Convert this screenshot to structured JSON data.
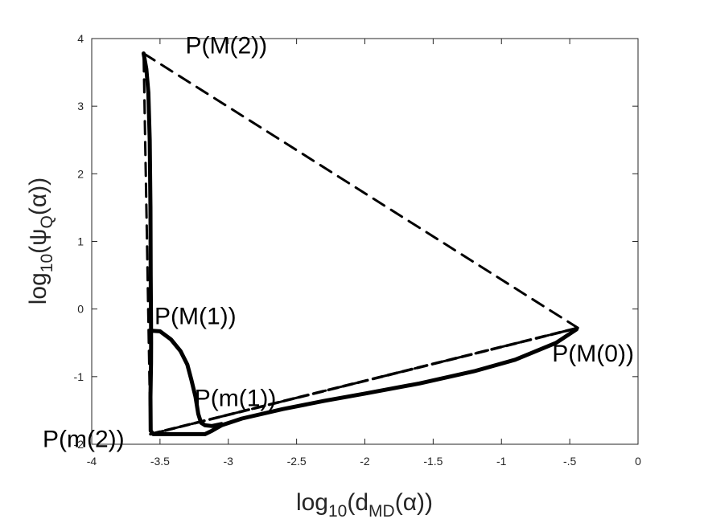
{
  "chart_data": {
    "type": "line",
    "xlabel": {
      "pre": "log",
      "sub1": "10",
      "mid": "(d",
      "sub2": "MD",
      "post": "(α))"
    },
    "ylabel": {
      "pre": "log",
      "sub1": "10",
      "mid": "(ψ",
      "sub2": "Q",
      "post": "(α))"
    },
    "xlim": [
      -4,
      0
    ],
    "ylim": [
      -2,
      4
    ],
    "xticks": [
      -4,
      -3.5,
      -3,
      -2.5,
      -2,
      -1.5,
      -1,
      -0.5,
      0
    ],
    "yticks": [
      -2,
      -1,
      0,
      1,
      2,
      3,
      4
    ],
    "grid": false,
    "colors": {
      "curve": "#000000",
      "axes": "#262626"
    },
    "series": [
      {
        "style": "solid",
        "x": [
          -3.62,
          -3.6,
          -3.585,
          -3.575,
          -3.57,
          -3.568,
          -3.566,
          -3.565,
          -3.566,
          -3.57,
          -3.568,
          -3.55,
          -3.5,
          -3.42,
          -3.35,
          -3.3,
          -3.27,
          -3.24,
          -3.22,
          -3.2,
          -3.17,
          -3.12,
          -3.05,
          -2.9,
          -2.6,
          -2.3,
          -2.0,
          -1.6,
          -1.2,
          -0.9,
          -0.6,
          -0.45
        ],
        "y": [
          3.78,
          3.55,
          3.2,
          2.5,
          1.5,
          0.5,
          -0.2,
          -0.5,
          -0.8,
          -1.3,
          -1.8,
          -1.85,
          -1.85,
          -1.85,
          -1.85,
          -1.85,
          -1.85,
          -1.85,
          -1.85,
          -1.85,
          -1.85,
          -1.8,
          -1.72,
          -1.62,
          -1.48,
          -1.36,
          -1.25,
          -1.1,
          -0.92,
          -0.75,
          -0.5,
          -0.3
        ]
      },
      {
        "style": "solid",
        "x": [
          -3.57,
          -3.5,
          -3.42,
          -3.35,
          -3.3,
          -3.27,
          -3.24,
          -3.22,
          -3.2,
          -3.17,
          -3.12,
          -3.05
        ],
        "y": [
          -0.32,
          -0.33,
          -0.45,
          -0.62,
          -0.82,
          -1.05,
          -1.3,
          -1.55,
          -1.68,
          -1.72,
          -1.73,
          -1.7
        ]
      },
      {
        "style": "dashed",
        "x": [
          -3.62,
          -0.44,
          -3.57,
          -3.62
        ],
        "y": [
          3.78,
          -0.28,
          -1.85,
          3.78
        ]
      },
      {
        "style": "dotted",
        "x": [
          -3.57,
          -0.44
        ],
        "y": [
          -1.85,
          -0.28
        ]
      }
    ],
    "annotations": [
      {
        "text": "P(M(2))",
        "x": -3.62,
        "y": 3.78
      },
      {
        "text": "P(M(1))",
        "x": -3.57,
        "y": -0.32
      },
      {
        "text": "P(m(1))",
        "x": -3.1,
        "y": -1.65
      },
      {
        "text": "P(m(2))",
        "x": -3.57,
        "y": -1.85
      },
      {
        "text": "P(M(0))",
        "x": -0.44,
        "y": -0.28
      }
    ]
  }
}
